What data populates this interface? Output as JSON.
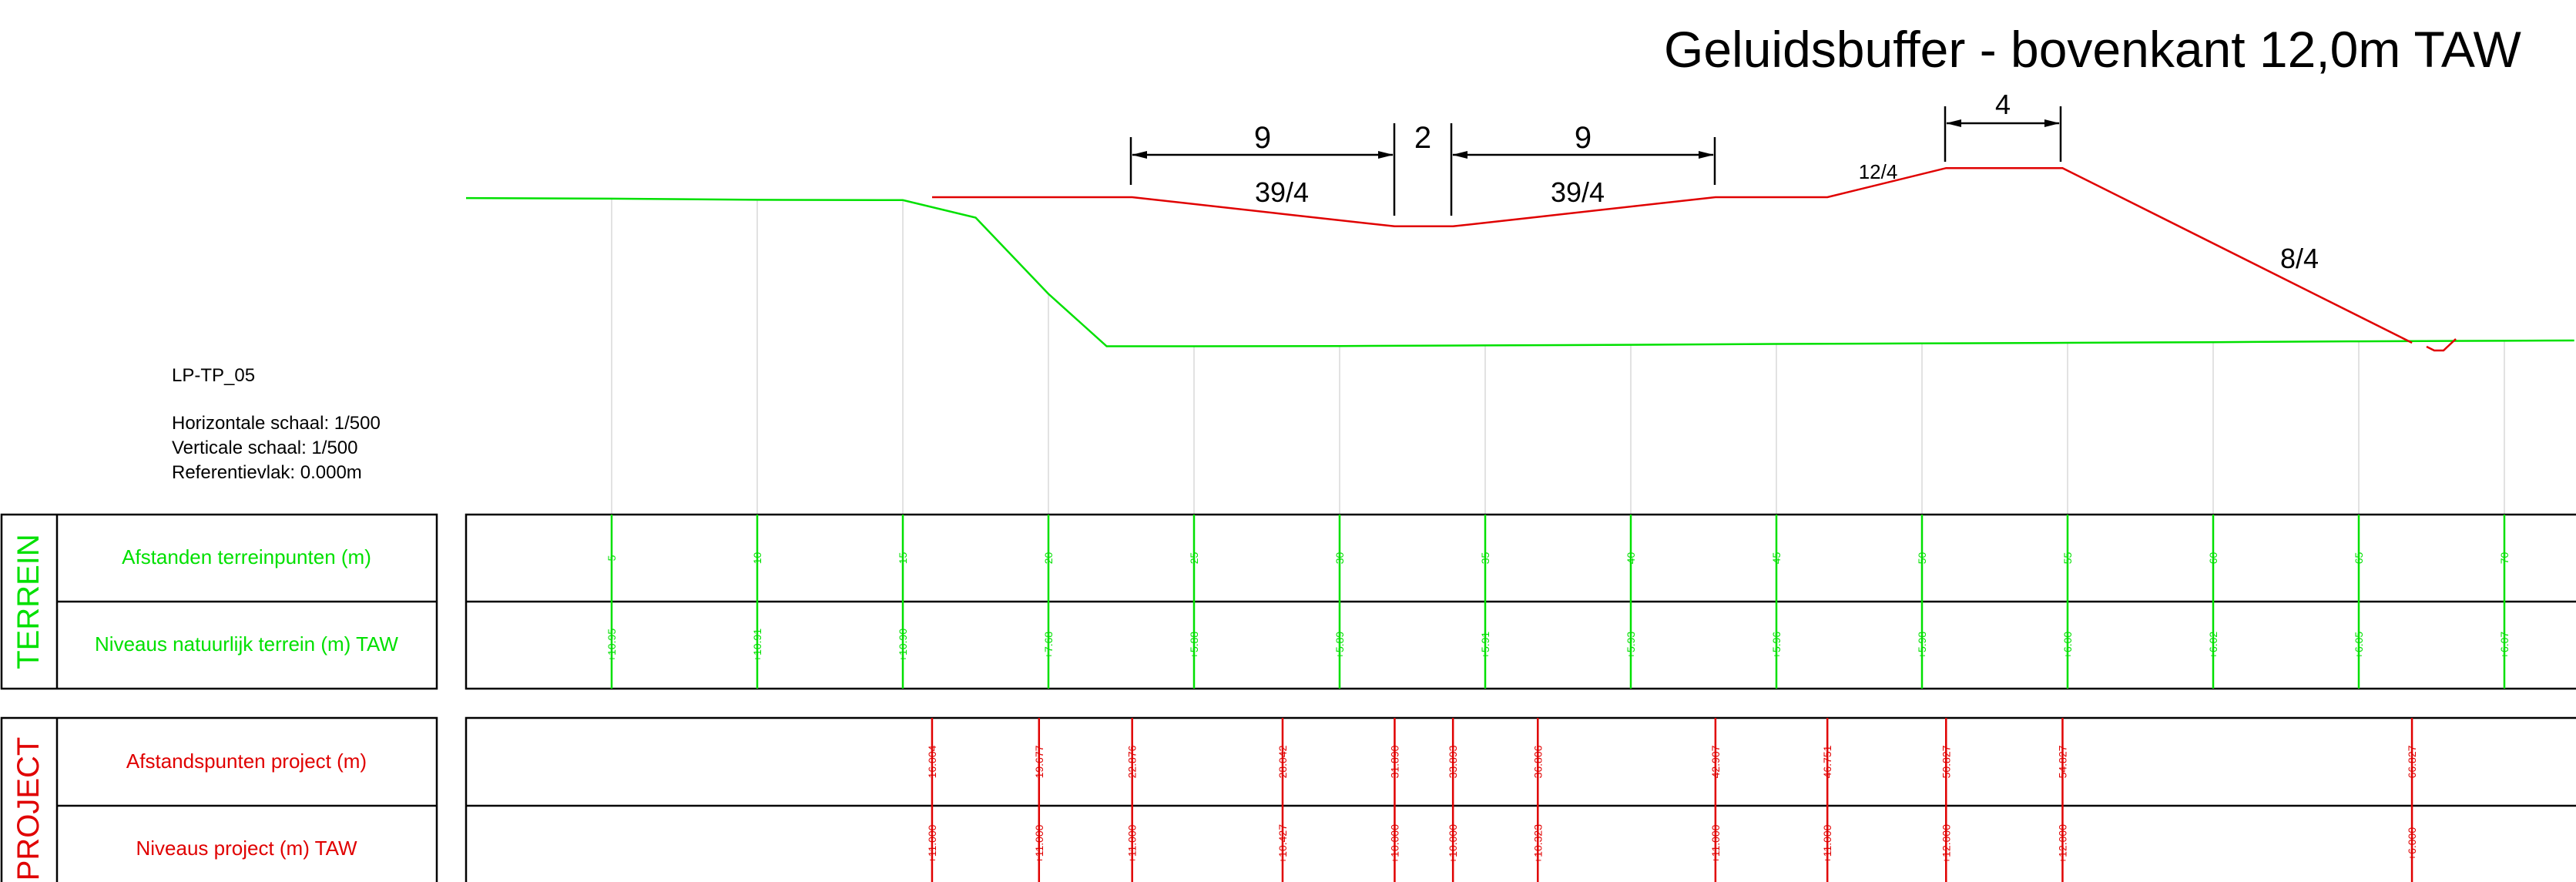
{
  "title": "Geluidsbuffer - bovenkant 12,0m TAW",
  "info": {
    "profile_id": "LP-TP_05",
    "horizontal_scale": "Horizontale schaal: 1/500",
    "vertical_scale": "Verticale schaal: 1/500",
    "reference_plane": "Referentievlak: 0.000m"
  },
  "colors": {
    "terrain": "#00e000",
    "project": "#e00000",
    "text": "#000000",
    "grid": "#d8d8d8"
  },
  "sections": {
    "terrein": {
      "label": "TERREIN",
      "row1": "Afstanden terreinpunten (m)",
      "row2": "Niveaus natuurlijk terrein (m) TAW",
      "distances": [
        "5",
        "10",
        "15",
        "20",
        "25",
        "30",
        "35",
        "40",
        "45",
        "50",
        "55",
        "60",
        "65",
        "70"
      ],
      "levels": [
        "+10.95",
        "+10.91",
        "+10.90",
        "+7.68",
        "+5.88",
        "+5.89",
        "+5.91",
        "+5.93",
        "+5.96",
        "+5.98",
        "+6.00",
        "+6.02",
        "+6.05",
        "+6.07"
      ]
    },
    "project": {
      "label": "PROJECT",
      "row1": "Afstandspunten project (m)",
      "row2": "Niveaus project (m) TAW",
      "distances": [
        "16.004",
        "19.677",
        "22.876",
        "28.042",
        "31.890",
        "33.893",
        "36.806",
        "42.907",
        "46.751",
        "50.827",
        "54.827",
        "66.827"
      ],
      "levels": [
        "+11.000",
        "+11.000",
        "+11.000",
        "+10.427",
        "+10.000",
        "+10.000",
        "+10.323",
        "+11.000",
        "+11.000",
        "+12.000",
        "+12.000",
        "+6.000"
      ]
    }
  },
  "dimensions": {
    "dim1": "9",
    "dim2": "2",
    "dim3": "9",
    "dim4": "4"
  },
  "slopes": {
    "s1": "39/4",
    "s2": "39/4",
    "s3": "12/4",
    "s4": "8/4"
  },
  "chart_data": {
    "type": "line",
    "title": "Geluidsbuffer - bovenkant 12,0m TAW",
    "xlabel": "",
    "ylabel": "",
    "series": [
      {
        "name": "TERREIN",
        "x": [
          0,
          5,
          10,
          15,
          17.5,
          20,
          22,
          25,
          30,
          35,
          40,
          45,
          50,
          55,
          60,
          65,
          70,
          72.4
        ],
        "values": [
          10.97,
          10.95,
          10.91,
          10.9,
          10.3,
          7.68,
          5.88,
          5.88,
          5.89,
          5.91,
          5.93,
          5.96,
          5.98,
          6.0,
          6.02,
          6.05,
          6.07,
          6.08
        ]
      },
      {
        "name": "PROJECT",
        "x": [
          16.004,
          19.677,
          22.876,
          28.042,
          31.89,
          33.893,
          36.806,
          42.907,
          46.751,
          50.827,
          54.827,
          66.827
        ],
        "values": [
          11.0,
          11.0,
          11.0,
          10.427,
          10.0,
          10.0,
          10.323,
          11.0,
          11.0,
          12.0,
          12.0,
          6.0
        ]
      }
    ]
  }
}
